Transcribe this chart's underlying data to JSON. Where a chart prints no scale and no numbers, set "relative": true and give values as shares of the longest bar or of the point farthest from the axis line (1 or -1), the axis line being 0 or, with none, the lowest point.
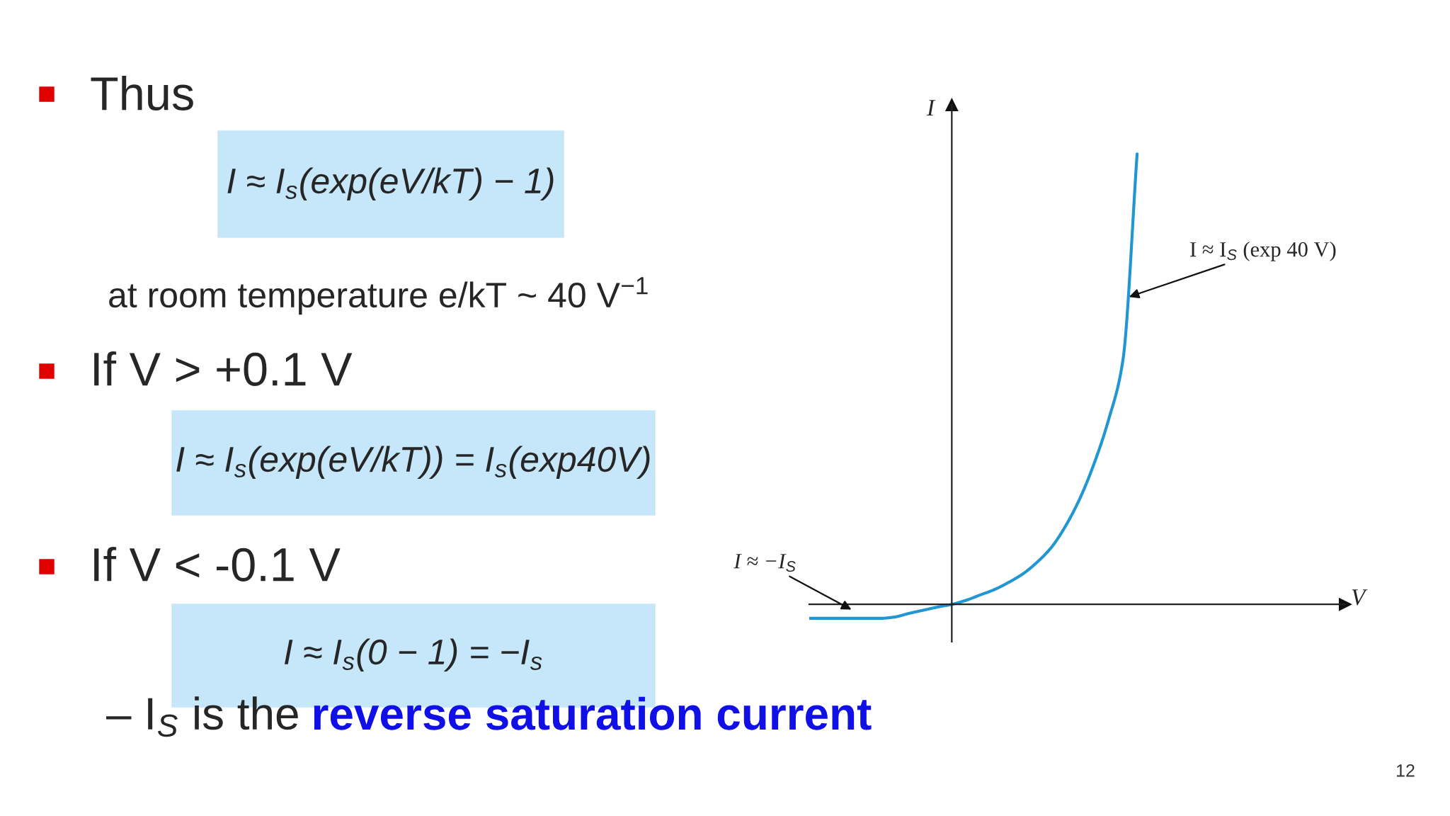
{
  "chart_data": {
    "type": "line",
    "relative": true,
    "categories": [
      null,
      null,
      null,
      null,
      null,
      null,
      null,
      null,
      null,
      null,
      null,
      null,
      null,
      null,
      null,
      null,
      null,
      null,
      null,
      null,
      null,
      null,
      null,
      null
    ],
    "series": [
      {
        "color": "#2196d3",
        "values": [
          -0.031,
          -0.031,
          -0.031,
          -0.031,
          -0.031,
          -0.031,
          -0.028,
          -0.02,
          -0.013,
          -0.006,
          0,
          0.009,
          0.021,
          0.033,
          0.049,
          0.068,
          0.094,
          0.127,
          0.175,
          0.236,
          0.314,
          0.41,
          0.541,
          1.0
        ]
      }
    ],
    "annotations": [
      "Thus",
      "I ≈ I$_{s}$(exp(eV/kT) − 1)",
      "at room temperature e/kT ~ 40 V$^{−1}$",
      "If V > +0.1 V",
      "I ≈ I$_{s}$(exp(eV/kT)) = I$_{s}$(exp40V)",
      "If V < -0.1 V",
      "I ≈ I$_{s}$(0 − 1) = −I$_{s}$",
      "– I$_{S}$ is the ",
      "reverse saturation current",
      "I ≈ −I$_{S}$",
      "I ≈ I$_{S}$ (exp 40 V)",
      "12",
      "V",
      "I"
    ]
  }
}
